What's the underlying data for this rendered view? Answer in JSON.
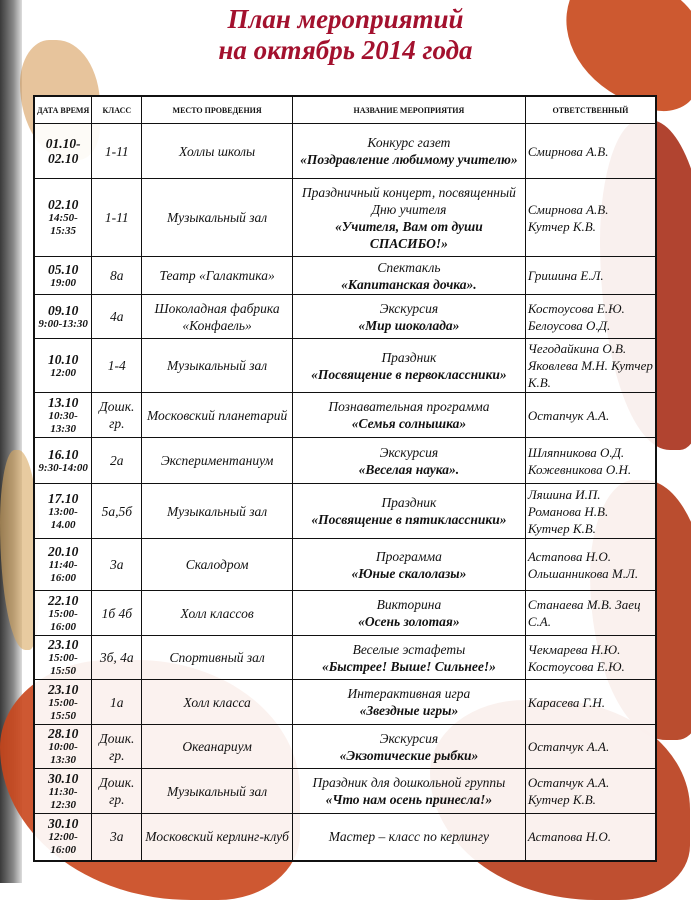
{
  "title": {
    "line1": "План мероприятий",
    "line2": "на октябрь 2014 года"
  },
  "headers": {
    "date": "ДАТА ВРЕМЯ",
    "class": "КЛАСС",
    "place": "МЕСТО ПРОВЕДЕНИЯ",
    "event": "НАЗВАНИЕ МЕРОПРИЯТИЯ",
    "responsible": "ОТВЕТСТВЕННЫЙ"
  },
  "colors": {
    "title": "#a3112e",
    "leaf": "#c23a14"
  },
  "rows": [
    {
      "date": "01.10-02.10",
      "time": "",
      "class": "1-11",
      "place": "Холлы школы",
      "type": "Конкурс газет",
      "name": "«Поздравление любимому учителю»",
      "responsible": "Смирнова А.В."
    },
    {
      "date": "02.10",
      "time": "14:50-15:35",
      "class": "1-11",
      "place": "Музыкальный зал",
      "type": "Праздничный концерт, посвященный Дню учителя",
      "name": "«Учителя, Вам от души СПАСИБО!»",
      "responsible": "Смирнова А.В. Кутчер К.В."
    },
    {
      "date": "05.10",
      "time": "19:00",
      "class": "8а",
      "place": "Театр «Галактика»",
      "type": "Спектакль",
      "name": "«Капитанская дочка».",
      "responsible": "Гришина Е.Л."
    },
    {
      "date": "09.10",
      "time": "9:00-13:30",
      "class": "4а",
      "place": "Шоколадная фабрика «Конфаель»",
      "type": "Экскурсия",
      "name": "«Мир шоколада»",
      "responsible": "Костоусова Е.Ю. Белоусова О.Д."
    },
    {
      "date": "10.10",
      "time": "12:00",
      "class": "1-4",
      "place": "Музыкальный зал",
      "type": "Праздник",
      "name": "«Посвящение в первоклассники»",
      "responsible": "Чегодайкина О.В. Яковлева М.Н. Кутчер К.В."
    },
    {
      "date": "13.10",
      "time": "10:30-13:30",
      "class": "Дошк. гр.",
      "place": "Московский планетарий",
      "type": "Познавательная программа",
      "name": "«Семья солнышка»",
      "responsible": "Остапчук А.А."
    },
    {
      "date": "16.10",
      "time": "9:30-14:00",
      "class": "2а",
      "place": "Экспериментаниум",
      "type": "Экскурсия",
      "name": "«Веселая наука».",
      "responsible": "Шляпникова О.Д. Кожевникова О.Н."
    },
    {
      "date": "17.10",
      "time": "13:00-14.00",
      "class": "5а,5б",
      "place": "Музыкальный зал",
      "type": "Праздник",
      "name": "«Посвящение в пятиклассники»",
      "responsible": "Ляшина И.П. Романова Н.В. Кутчер К.В."
    },
    {
      "date": "20.10",
      "time": "11:40-16:00",
      "class": "3а",
      "place": "Скалодром",
      "type": "Программа",
      "name": "«Юные скалолазы»",
      "responsible": "Астапова Н.О. Ольшанникова М.Л."
    },
    {
      "date": "22.10",
      "time": "15:00-16:00",
      "class": "1б 4б",
      "place": "Холл классов",
      "type": "Викторина",
      "name": "«Осень золотая»",
      "responsible": "Станаева М.В. Заец С.А."
    },
    {
      "date": "23.10",
      "time": "15:00-15:50",
      "class": "3б, 4а",
      "place": "Спортивный зал",
      "type": "Веселые эстафеты",
      "name": "«Быстрее! Выше! Сильнее!»",
      "responsible": "Чекмарева Н.Ю. Костоусова Е.Ю."
    },
    {
      "date": "23.10",
      "time": "15:00-15:50",
      "class": "1а",
      "place": "Холл класса",
      "type": "Интерактивная игра",
      "name": "«Звездные игры»",
      "responsible": "Карасева Г.Н."
    },
    {
      "date": "28.10",
      "time": "10:00-13:30",
      "class": "Дошк. гр.",
      "place": "Океанариум",
      "type": "Экскурсия",
      "name": "«Экзотические рыбки»",
      "responsible": "Остапчук А.А."
    },
    {
      "date": "30.10",
      "time": "11:30-12:30",
      "class": "Дошк. гр.",
      "place": "Музыкальный зал",
      "type": "Праздник для дошкольной группы",
      "name": "«Что нам осень принесла!»",
      "responsible": "Остапчук А.А. Кутчер К.В."
    },
    {
      "date": "30.10",
      "time": "12:00-16:00",
      "class": "3а",
      "place": "Московский керлинг-клуб",
      "type": "Мастер – класс по керлингу",
      "name": "",
      "responsible": "Астапова Н.О."
    }
  ]
}
